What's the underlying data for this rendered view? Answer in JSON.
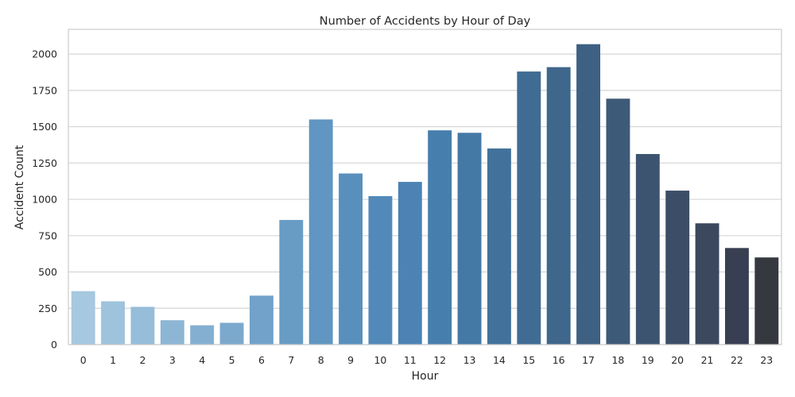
{
  "chart_data": {
    "type": "bar",
    "title": "Number of Accidents by Hour of Day",
    "xlabel": "Hour",
    "ylabel": "Accident Count",
    "categories": [
      "0",
      "1",
      "2",
      "3",
      "4",
      "5",
      "6",
      "7",
      "8",
      "9",
      "10",
      "11",
      "12",
      "13",
      "14",
      "15",
      "16",
      "17",
      "18",
      "19",
      "20",
      "21",
      "22",
      "23"
    ],
    "values": [
      368,
      298,
      260,
      168,
      133,
      150,
      337,
      858,
      1550,
      1178,
      1022,
      1120,
      1475,
      1458,
      1350,
      1880,
      1910,
      2068,
      1693,
      1312,
      1060,
      835,
      665,
      600
    ],
    "ylim": [
      0,
      2170
    ],
    "yticks": [
      0,
      250,
      500,
      750,
      1000,
      1250,
      1500,
      1750,
      2000
    ],
    "grid": true,
    "colors": [
      "#a6c8e0",
      "#9ec3dc",
      "#96bdd9",
      "#8db6d5",
      "#84afd1",
      "#7ba9cd",
      "#72a2c9",
      "#699cc5",
      "#6096c1",
      "#588fbd",
      "#5189b9",
      "#4b83b4",
      "#467ead",
      "#4478a5",
      "#42729c",
      "#406c93",
      "#3f668b",
      "#3e6082",
      "#3e5a79",
      "#3d5470",
      "#3c4e67",
      "#3b485e",
      "#393f52",
      "#36383f"
    ]
  }
}
